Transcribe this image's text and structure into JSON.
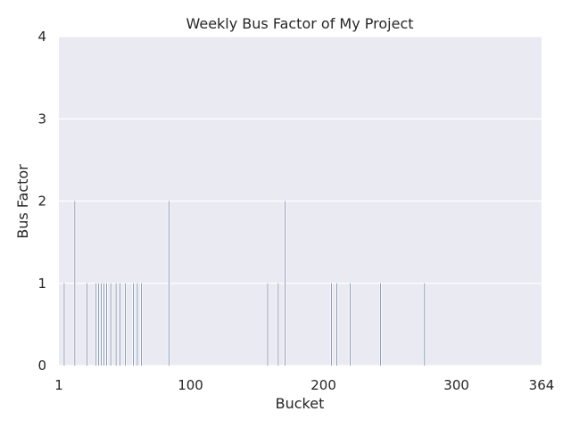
{
  "chart_data": {
    "type": "bar",
    "title": "Weekly Bus Factor of My Project",
    "xlabel": "Bucket",
    "ylabel": "Bus Factor",
    "xlim": [
      1,
      364
    ],
    "ylim": [
      0,
      4
    ],
    "xticks": [
      1,
      100,
      200,
      300,
      364
    ],
    "yticks": [
      0,
      1,
      2,
      3,
      4
    ],
    "grid": true,
    "colors": {
      "background": "#eaeaf2",
      "grid": "#ffffff",
      "bar": "#5b6f95",
      "text": "#262626"
    },
    "bars": [
      {
        "x": 5,
        "y": 1
      },
      {
        "x": 13,
        "y": 2
      },
      {
        "x": 22,
        "y": 1
      },
      {
        "x": 29,
        "y": 1
      },
      {
        "x": 31,
        "y": 1
      },
      {
        "x": 33,
        "y": 1
      },
      {
        "x": 35,
        "y": 1
      },
      {
        "x": 37,
        "y": 1
      },
      {
        "x": 40,
        "y": 1
      },
      {
        "x": 44,
        "y": 1
      },
      {
        "x": 47,
        "y": 1
      },
      {
        "x": 51,
        "y": 1
      },
      {
        "x": 57,
        "y": 1
      },
      {
        "x": 60,
        "y": 1
      },
      {
        "x": 63,
        "y": 1
      },
      {
        "x": 84,
        "y": 2
      },
      {
        "x": 158,
        "y": 1
      },
      {
        "x": 166,
        "y": 1
      },
      {
        "x": 171,
        "y": 2
      },
      {
        "x": 206,
        "y": 1
      },
      {
        "x": 210,
        "y": 1
      },
      {
        "x": 220,
        "y": 1
      },
      {
        "x": 243,
        "y": 1
      },
      {
        "x": 276,
        "y": 1
      }
    ]
  }
}
